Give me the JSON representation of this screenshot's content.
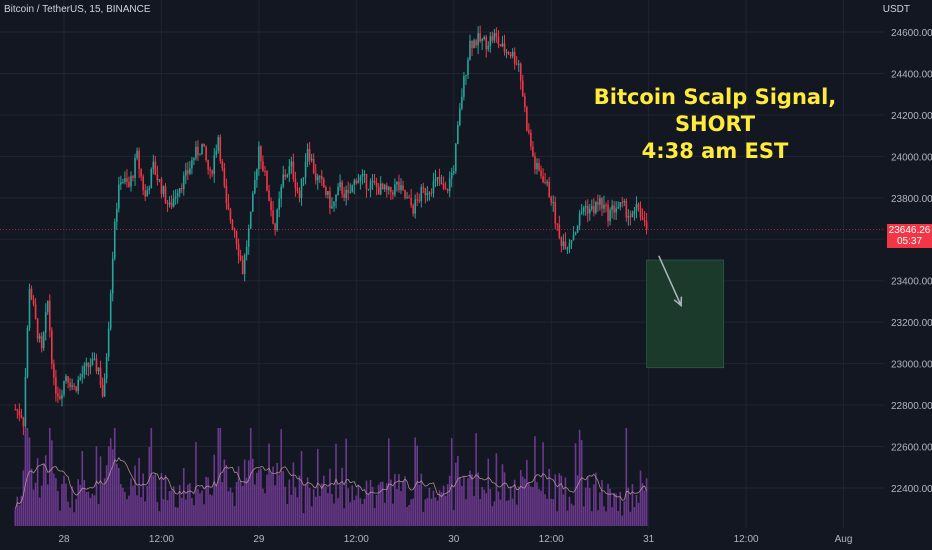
{
  "header": {
    "symbol_title": "Bitcoin / TetherUS, 15, BINANCE",
    "currency": "USDT"
  },
  "annotation": {
    "line1": "Bitcoin Scalp Signal, SHORT",
    "line2": "4:38 am EST"
  },
  "last_price": {
    "value": "23646.26",
    "countdown": "05:37"
  },
  "colors": {
    "background": "#131722",
    "grid": "#1f2431",
    "up": "#26a69a",
    "down": "#f23645",
    "volume": "#7b3fa0",
    "volume_ma": "#c9a9a6",
    "target_zone": "#1b3a2c",
    "annotation_text": "#ffeb3b",
    "axis_text": "#b2b5be"
  },
  "chart_data": {
    "type": "candlestick",
    "title": "Bitcoin / TetherUS, 15, BINANCE",
    "ylabel": "USDT",
    "ylim": [
      22200,
      24700
    ],
    "y_ticks": [
      22400,
      22600,
      22800,
      23000,
      23200,
      23400,
      23600,
      23800,
      24000,
      24200,
      24400,
      24600
    ],
    "x_ticks": [
      {
        "label": "28",
        "t": 0
      },
      {
        "label": "12:00",
        "t": 48
      },
      {
        "label": "29",
        "t": 96
      },
      {
        "label": "12:00",
        "t": 144
      },
      {
        "label": "30",
        "t": 192
      },
      {
        "label": "12:00",
        "t": 240
      },
      {
        "label": "31",
        "t": 288
      },
      {
        "label": "12:00",
        "t": 336
      },
      {
        "label": "Aug",
        "t": 384
      }
    ],
    "price_path": [
      [
        -24,
        22780
      ],
      [
        -21,
        22760
      ],
      [
        -20,
        22720
      ],
      [
        -17,
        23380
      ],
      [
        -14,
        23200
      ],
      [
        -11,
        23050
      ],
      [
        -8,
        23300
      ],
      [
        -5,
        22900
      ],
      [
        -2,
        22850
      ],
      [
        1,
        22950
      ],
      [
        5,
        22880
      ],
      [
        9,
        22950
      ],
      [
        13,
        23000
      ],
      [
        17,
        22980
      ],
      [
        19,
        22850
      ],
      [
        20,
        22900
      ],
      [
        22,
        23200
      ],
      [
        25,
        23700
      ],
      [
        28,
        23900
      ],
      [
        32,
        23850
      ],
      [
        36,
        24000
      ],
      [
        40,
        23800
      ],
      [
        44,
        23950
      ],
      [
        48,
        23850
      ],
      [
        52,
        23750
      ],
      [
        56,
        23850
      ],
      [
        60,
        23900
      ],
      [
        64,
        24000
      ],
      [
        68,
        24050
      ],
      [
        72,
        23900
      ],
      [
        76,
        24100
      ],
      [
        80,
        23750
      ],
      [
        84,
        23650
      ],
      [
        88,
        23450
      ],
      [
        92,
        23700
      ],
      [
        96,
        24050
      ],
      [
        100,
        23850
      ],
      [
        104,
        23650
      ],
      [
        108,
        23900
      ],
      [
        112,
        23950
      ],
      [
        116,
        23800
      ],
      [
        120,
        24050
      ],
      [
        124,
        23900
      ],
      [
        128,
        23850
      ],
      [
        132,
        23750
      ],
      [
        136,
        23850
      ],
      [
        140,
        23800
      ],
      [
        144,
        23900
      ],
      [
        148,
        23880
      ],
      [
        152,
        23860
      ],
      [
        156,
        23840
      ],
      [
        160,
        23820
      ],
      [
        164,
        23860
      ],
      [
        168,
        23800
      ],
      [
        172,
        23750
      ],
      [
        176,
        23820
      ],
      [
        180,
        23850
      ],
      [
        184,
        23880
      ],
      [
        188,
        23820
      ],
      [
        192,
        23950
      ],
      [
        196,
        24300
      ],
      [
        200,
        24550
      ],
      [
        204,
        24560
      ],
      [
        208,
        24550
      ],
      [
        212,
        24580
      ],
      [
        216,
        24520
      ],
      [
        220,
        24500
      ],
      [
        224,
        24450
      ],
      [
        228,
        24150
      ],
      [
        232,
        23950
      ],
      [
        236,
        23900
      ],
      [
        240,
        23800
      ],
      [
        244,
        23600
      ],
      [
        248,
        23580
      ],
      [
        252,
        23650
      ],
      [
        256,
        23760
      ],
      [
        260,
        23740
      ],
      [
        264,
        23780
      ],
      [
        268,
        23720
      ],
      [
        272,
        23760
      ],
      [
        276,
        23750
      ],
      [
        280,
        23700
      ],
      [
        283,
        23760
      ],
      [
        285,
        23690
      ],
      [
        287,
        23646
      ]
    ],
    "last_price": 23646.26,
    "target_zone": {
      "t_start": 287,
      "t_end": 325,
      "price_top": 23500,
      "price_bottom": 22980
    },
    "arrow": {
      "from": {
        "t": 293,
        "price": 23520
      },
      "to": {
        "t": 304,
        "price": 23280
      }
    },
    "volume_max": 3000
  }
}
